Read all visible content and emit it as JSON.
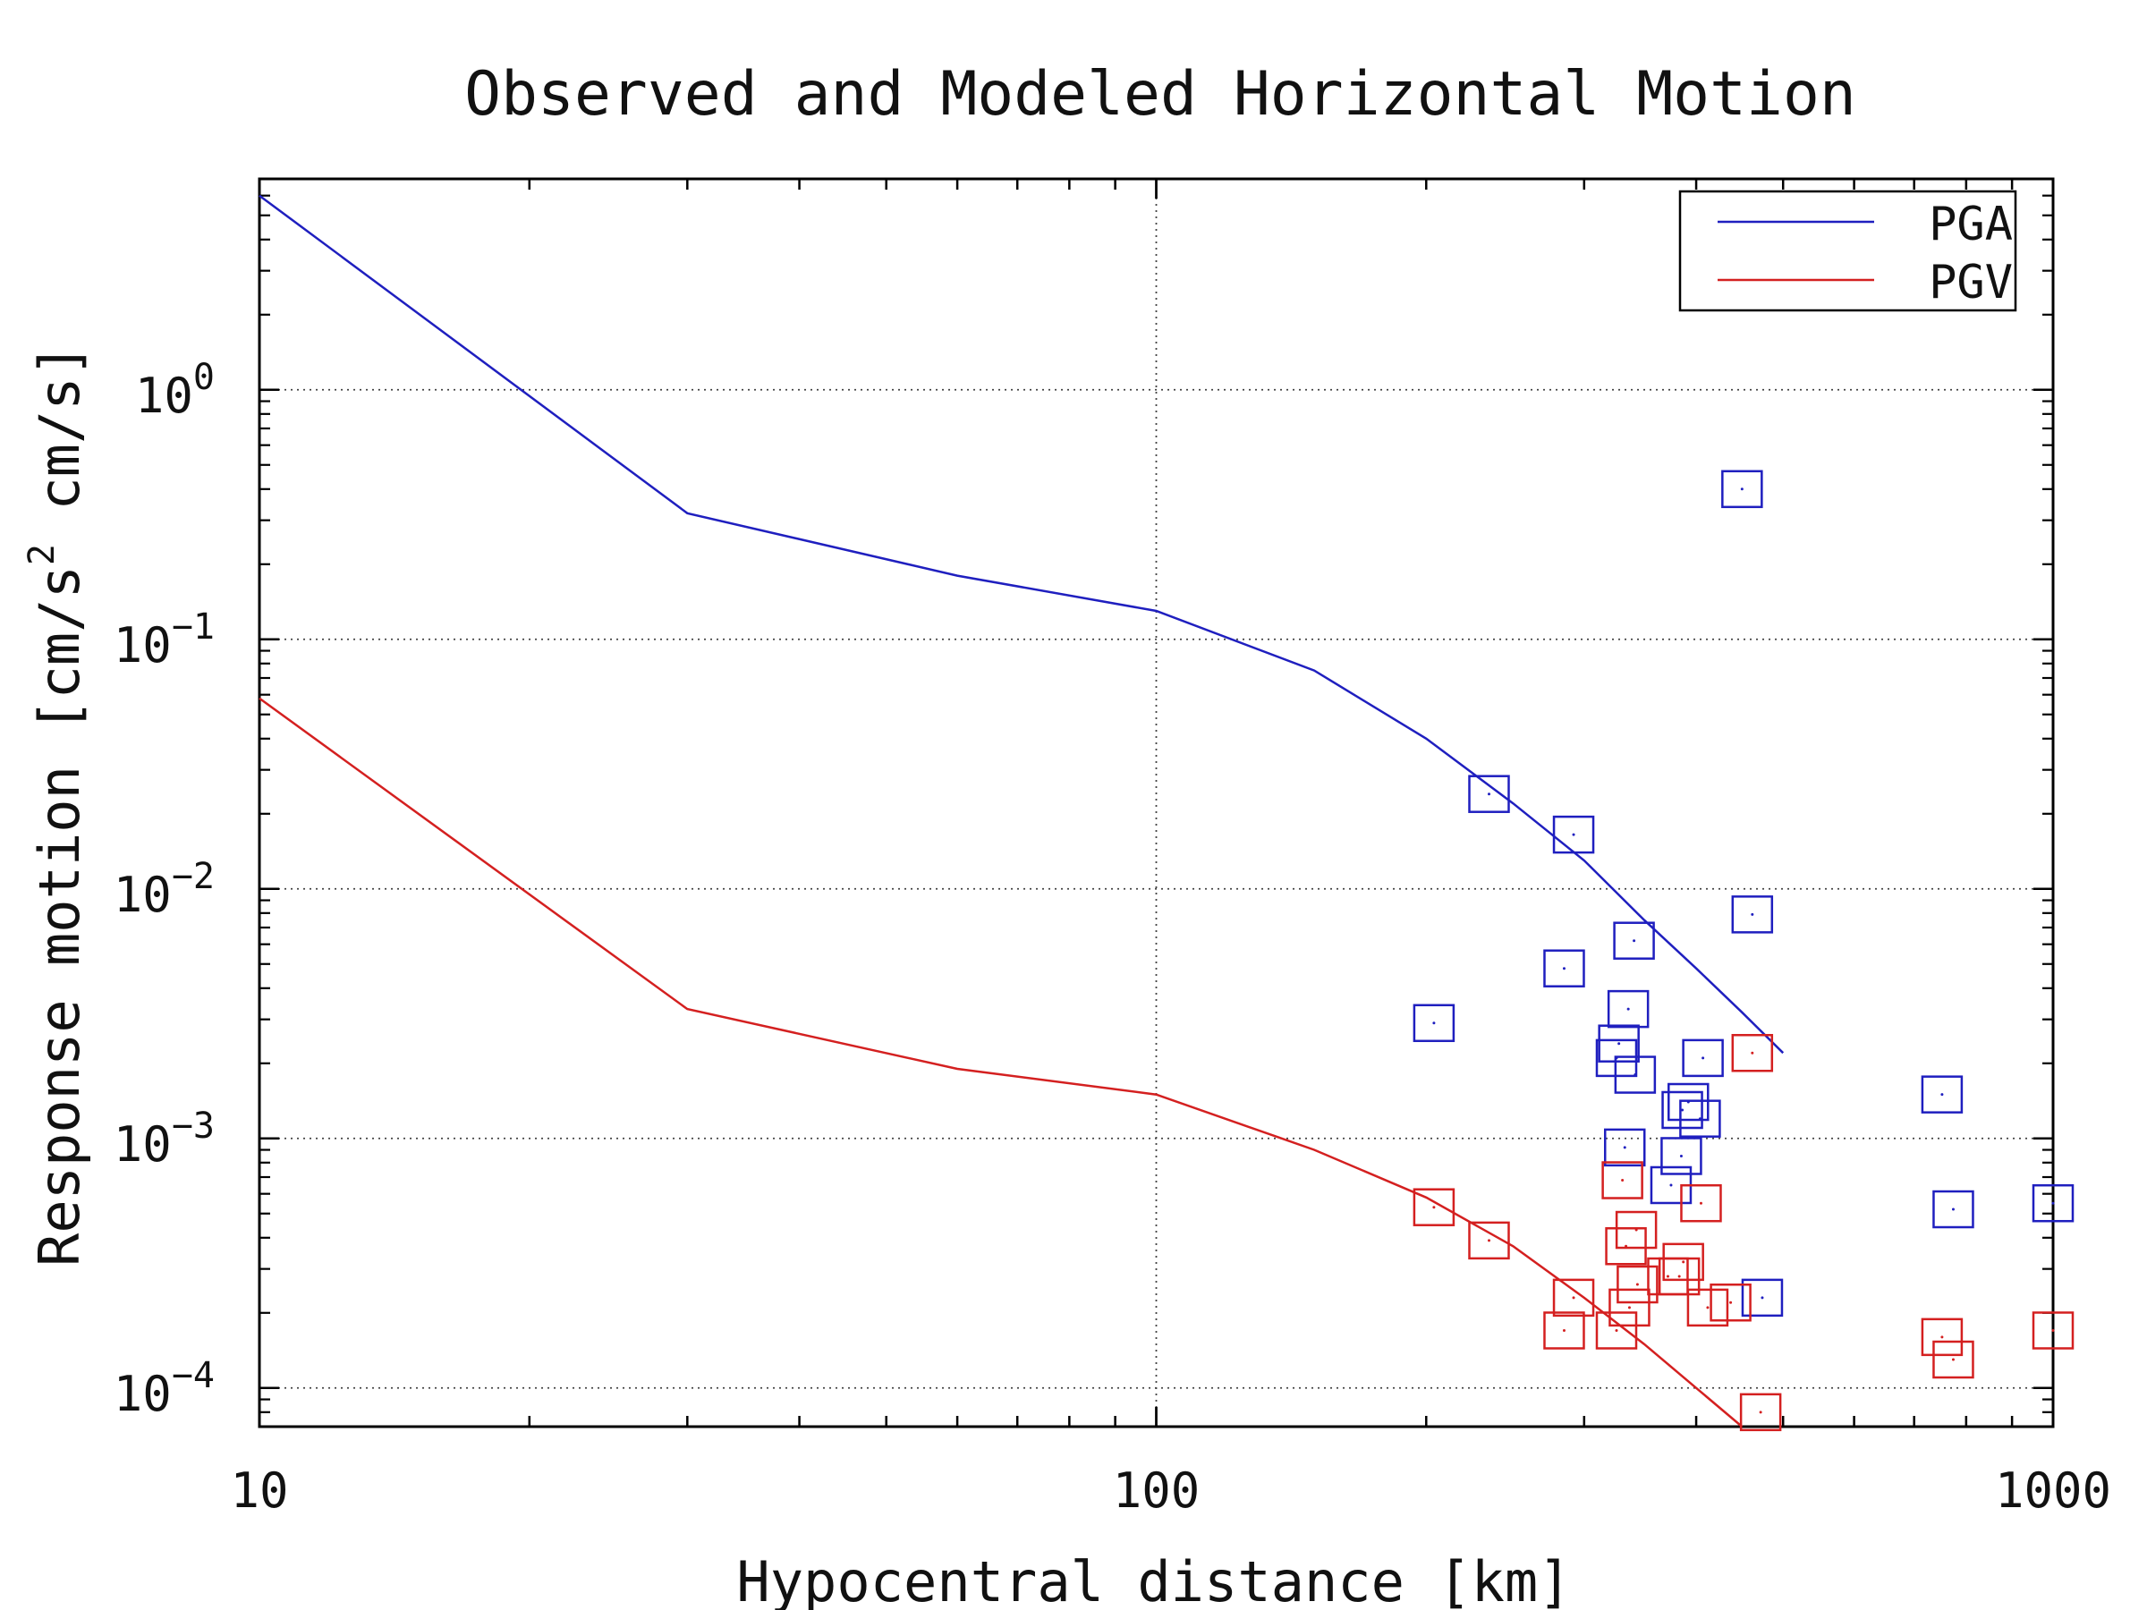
{
  "chart_data": {
    "type": "scatter",
    "title": "Observed and Modeled Horizontal Motion",
    "xlabel": "Hypocentral distance [km]",
    "ylabel": "Response motion [cm/s² cm/s]",
    "ylabel_parts": {
      "main": "Response motion [cm/s",
      "sup": "2",
      "tail": " cm/s]"
    },
    "x_scale": "log",
    "y_scale": "log",
    "xlim": [
      10,
      1000
    ],
    "ylim": [
      7e-05,
      7
    ],
    "x_ticks": [
      {
        "value": 10,
        "label": "10"
      },
      {
        "value": 100,
        "label": "100"
      },
      {
        "value": 1000,
        "label": "1000"
      }
    ],
    "y_ticks": [
      {
        "value": 1,
        "base": "10",
        "exp": "0"
      },
      {
        "value": 0.1,
        "base": "10",
        "exp": "−1"
      },
      {
        "value": 0.01,
        "base": "10",
        "exp": "−2"
      },
      {
        "value": 0.001,
        "base": "10",
        "exp": "−3"
      },
      {
        "value": 0.0001,
        "base": "10",
        "exp": "−4"
      }
    ],
    "grid": true,
    "legend": {
      "placement": "top-right",
      "entries": [
        {
          "label": "PGA",
          "color": "#1f1fbf"
        },
        {
          "label": "PGV",
          "color": "#d42020"
        }
      ]
    },
    "series": [
      {
        "name": "PGA",
        "kind": "model-line",
        "color": "#1f1fbf",
        "points": [
          [
            10,
            6.0
          ],
          [
            30,
            0.32
          ],
          [
            60,
            0.18
          ],
          [
            100,
            0.13
          ],
          [
            150,
            0.075
          ],
          [
            200,
            0.04
          ],
          [
            250,
            0.022
          ],
          [
            300,
            0.013
          ],
          [
            350,
            0.0075
          ],
          [
            400,
            0.0048
          ],
          [
            450,
            0.0032
          ],
          [
            500,
            0.0022
          ]
        ]
      },
      {
        "name": "PGV",
        "kind": "model-line",
        "color": "#d42020",
        "points": [
          [
            10,
            0.058
          ],
          [
            30,
            0.0033
          ],
          [
            60,
            0.0019
          ],
          [
            100,
            0.0015
          ],
          [
            150,
            0.0009
          ],
          [
            200,
            0.00058
          ],
          [
            250,
            0.00037
          ],
          [
            300,
            0.00023
          ],
          [
            350,
            0.00015
          ],
          [
            400,
            0.0001
          ],
          [
            450,
            7e-05
          ]
        ]
      },
      {
        "name": "PGA",
        "kind": "observed",
        "color": "#1f1fbf",
        "points": [
          [
            235,
            0.024
          ],
          [
            292,
            0.0165
          ],
          [
            285,
            0.0048
          ],
          [
            204,
            0.0029
          ],
          [
            341,
            0.0062
          ],
          [
            336,
            0.0033
          ],
          [
            328,
            0.0024
          ],
          [
            326,
            0.0021
          ],
          [
            342,
            0.0018
          ],
          [
            407,
            0.0021
          ],
          [
            392,
            0.0014
          ],
          [
            386,
            0.0013
          ],
          [
            404,
            0.0012
          ],
          [
            333,
            0.00092
          ],
          [
            385,
            0.00085
          ],
          [
            375,
            0.00065
          ],
          [
            450,
            0.4
          ],
          [
            462,
            0.0079
          ],
          [
            474,
            0.00023
          ],
          [
            752,
            0.0015
          ],
          [
            774,
            0.00052
          ],
          [
            1000,
            0.00055
          ]
        ]
      },
      {
        "name": "PGV",
        "kind": "observed",
        "color": "#d42020",
        "points": [
          [
            204,
            0.00053
          ],
          [
            235,
            0.00039
          ],
          [
            292,
            0.00023
          ],
          [
            285,
            0.00017
          ],
          [
            331,
            0.00068
          ],
          [
            334,
            0.00037
          ],
          [
            343,
            0.00043
          ],
          [
            337,
            0.00021
          ],
          [
            326,
            0.00017
          ],
          [
            344,
            0.00026
          ],
          [
            372,
            0.00028
          ],
          [
            383,
            0.00028
          ],
          [
            387,
            0.00032
          ],
          [
            405,
            0.00055
          ],
          [
            412,
            0.00021
          ],
          [
            437,
            0.00022
          ],
          [
            462,
            0.0022
          ],
          [
            472,
            8e-05
          ],
          [
            752,
            0.00016
          ],
          [
            774,
            0.00013
          ],
          [
            1000,
            0.00017
          ]
        ]
      }
    ]
  }
}
